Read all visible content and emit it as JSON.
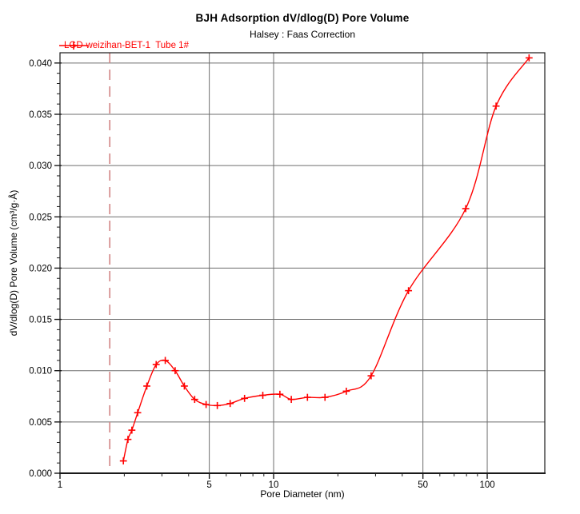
{
  "header": {
    "title": "BJH Adsorption dV/dlog(D) Pore Volume",
    "subtitle": "Halsey : Faas Correction"
  },
  "legend": {
    "label": "LGD-weizihan-BET-1  Tube 1#",
    "color": "#ff0000",
    "marker": "plus"
  },
  "colors": {
    "series": "#ff0000",
    "grid": "#6e6e6e",
    "frame": "#1a1a1a",
    "reference_line": "#d08383",
    "text": "#000000"
  },
  "chart_data": {
    "type": "line",
    "title": "BJH Adsorption dV/dlog(D) Pore Volume",
    "subtitle": "Halsey : Faas Correction",
    "xlabel": "Pore Diameter (nm)",
    "ylabel": "dV/dlog(D) Pore Volume (cm³/g·Å)",
    "x_scale": "log",
    "xlim": [
      1,
      186
    ],
    "ylim": [
      0,
      0.041
    ],
    "x_major_ticks": [
      1,
      5,
      10,
      50,
      100
    ],
    "x_major_tick_labels": [
      "1",
      "5",
      "10",
      "50",
      "100"
    ],
    "x_minor_ticks": [
      2,
      3,
      4,
      6,
      7,
      8,
      9,
      20,
      30,
      40,
      60,
      70,
      80,
      90
    ],
    "y_major_tick_step": 0.005,
    "y_minor_tick_step": 0.001,
    "y_tick_decimals": 3,
    "grid_vertical_at": [
      5,
      10,
      50,
      100
    ],
    "grid_horizontal_step": 0.005,
    "legend_position": "top-left",
    "reference_line": {
      "x": 1.71,
      "style": "dashed",
      "color": "#d08383"
    },
    "series": [
      {
        "name": "LGD-weizihan-BET-1  Tube 1#",
        "color": "#ff0000",
        "marker": "plus",
        "points": [
          [
            1.98,
            0.0012
          ],
          [
            2.08,
            0.0033
          ],
          [
            2.17,
            0.0042
          ],
          [
            2.31,
            0.0059
          ],
          [
            2.55,
            0.0085
          ],
          [
            2.82,
            0.0106
          ],
          [
            3.11,
            0.011
          ],
          [
            3.46,
            0.01
          ],
          [
            3.82,
            0.0085
          ],
          [
            4.27,
            0.0072
          ],
          [
            4.83,
            0.0067
          ],
          [
            5.45,
            0.0066
          ],
          [
            6.26,
            0.0068
          ],
          [
            7.31,
            0.0073
          ],
          [
            8.9,
            0.0076
          ],
          [
            10.7,
            0.0077
          ],
          [
            12.1,
            0.0072
          ],
          [
            14.4,
            0.0074
          ],
          [
            17.4,
            0.0074
          ],
          [
            21.9,
            0.008
          ],
          [
            28.6,
            0.0095
          ],
          [
            42.8,
            0.0178
          ],
          [
            79.3,
            0.0258
          ],
          [
            110.0,
            0.0358
          ],
          [
            157.0,
            0.0405
          ]
        ]
      }
    ]
  }
}
